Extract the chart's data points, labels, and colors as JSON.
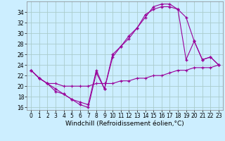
{
  "background_color": "#cceeff",
  "grid_color": "#aacccc",
  "line_color": "#990099",
  "line1_x": [
    0,
    1,
    2,
    3,
    4,
    5,
    6,
    7,
    8,
    9,
    10,
    11,
    12,
    13,
    14,
    15,
    16,
    17,
    18,
    19,
    20,
    21,
    22,
    23
  ],
  "line1_y": [
    23.0,
    21.5,
    20.5,
    19.0,
    18.5,
    17.5,
    16.5,
    16.0,
    22.5,
    19.5,
    25.5,
    27.5,
    29.5,
    31.0,
    33.0,
    35.0,
    35.5,
    35.5,
    34.5,
    25.0,
    28.5,
    25.0,
    25.5,
    24.0
  ],
  "line2_x": [
    0,
    1,
    2,
    3,
    4,
    5,
    6,
    7,
    8,
    9,
    10,
    11,
    12,
    13,
    14,
    15,
    16,
    17,
    18,
    19,
    20,
    21,
    22,
    23
  ],
  "line2_y": [
    23.0,
    21.5,
    20.5,
    19.5,
    18.5,
    17.5,
    17.0,
    16.5,
    23.0,
    19.5,
    26.0,
    27.5,
    29.0,
    31.0,
    33.5,
    34.5,
    35.0,
    35.0,
    34.5,
    33.0,
    28.5,
    25.0,
    25.5,
    24.0
  ],
  "line3_x": [
    0,
    1,
    2,
    3,
    4,
    5,
    6,
    7,
    8,
    9,
    10,
    11,
    12,
    13,
    14,
    15,
    16,
    17,
    18,
    19,
    20,
    21,
    22,
    23
  ],
  "line3_y": [
    23.0,
    21.5,
    20.5,
    20.5,
    20.0,
    20.0,
    20.0,
    20.0,
    20.5,
    20.5,
    20.5,
    21.0,
    21.0,
    21.5,
    21.5,
    22.0,
    22.0,
    22.5,
    23.0,
    23.0,
    23.5,
    23.5,
    23.5,
    24.0
  ],
  "xlim": [
    -0.5,
    23.5
  ],
  "ylim": [
    15.5,
    36.0
  ],
  "yticks": [
    16,
    18,
    20,
    22,
    24,
    26,
    28,
    30,
    32,
    34
  ],
  "xticks": [
    0,
    1,
    2,
    3,
    4,
    5,
    6,
    7,
    8,
    9,
    10,
    11,
    12,
    13,
    14,
    15,
    16,
    17,
    18,
    19,
    20,
    21,
    22,
    23
  ],
  "xlabel": "Windchill (Refroidissement éolien,°C)",
  "xlabel_fontsize": 6.5,
  "tick_fontsize": 5.5,
  "figwidth": 3.2,
  "figheight": 2.0,
  "dpi": 100
}
